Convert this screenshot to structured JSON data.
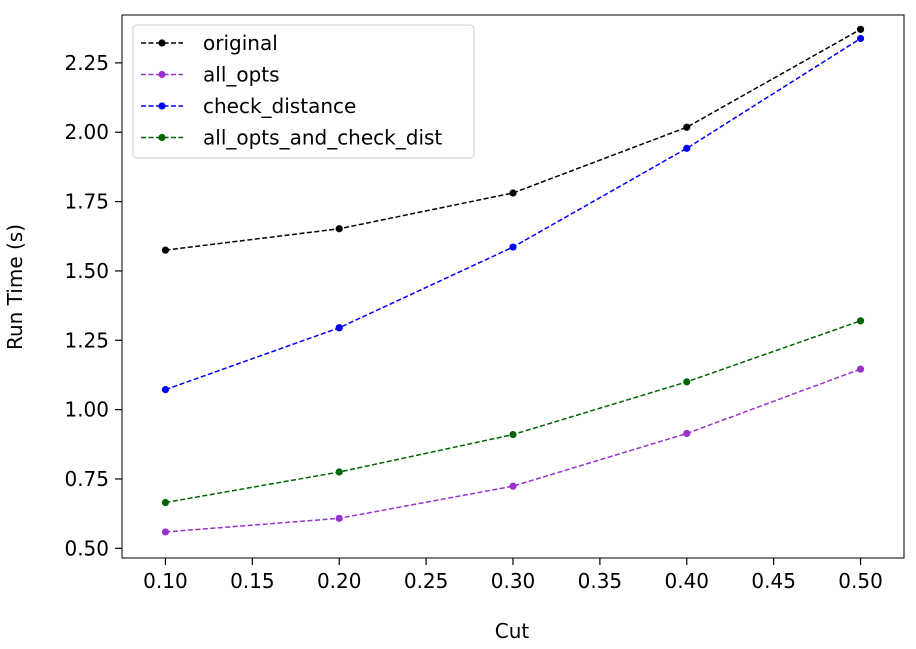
{
  "chart_data": {
    "type": "line",
    "xlabel": "Cut",
    "ylabel": "Run Time (s)",
    "xlim": [
      0.075,
      0.525
    ],
    "ylim": [
      0.465,
      2.4227
    ],
    "xticks": [
      "0.10",
      "0.15",
      "0.20",
      "0.25",
      "0.30",
      "0.35",
      "0.40",
      "0.45",
      "0.50"
    ],
    "yticks": [
      "0.50",
      "0.75",
      "1.00",
      "1.25",
      "1.50",
      "1.75",
      "2.00",
      "2.25"
    ],
    "x": [
      0.1,
      0.2,
      0.3,
      0.4,
      0.5
    ],
    "grid": false,
    "legend_position": "upper-left",
    "series": [
      {
        "name": "original",
        "color": "#000000",
        "values": [
          1.575,
          1.652,
          1.781,
          2.018,
          2.371
        ]
      },
      {
        "name": "all_opts",
        "color": "#9932CC",
        "values": [
          0.559,
          0.608,
          0.724,
          0.914,
          1.146
        ]
      },
      {
        "name": "check_distance",
        "color": "#0000FF",
        "values": [
          1.072,
          1.295,
          1.586,
          1.942,
          2.338
        ]
      },
      {
        "name": "all_opts_and_check_dist",
        "color": "#006400",
        "values": [
          0.665,
          0.775,
          0.91,
          1.1,
          1.32
        ]
      }
    ]
  }
}
